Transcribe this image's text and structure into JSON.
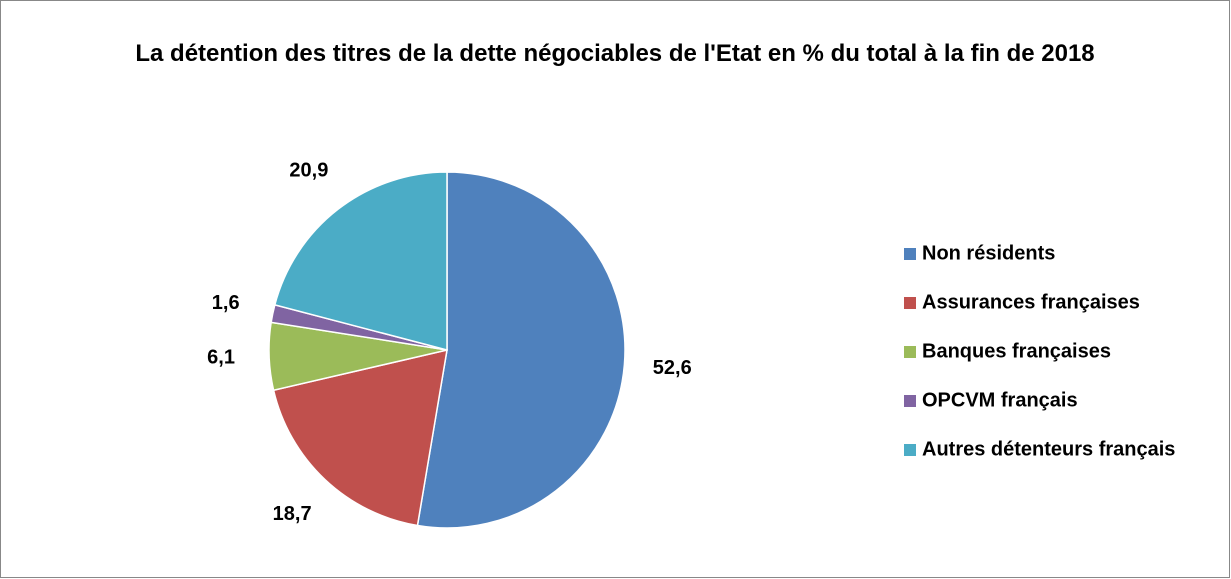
{
  "chart_data": {
    "type": "pie",
    "title": "La détention des titres de la dette négociables de l'Etat en % du total à la fin de 2018",
    "categories": [
      "Non résidents",
      "Assurances françaises",
      "Banques françaises",
      "OPCVM français",
      "Autres détenteurs français"
    ],
    "values": [
      52.6,
      18.7,
      6.1,
      1.6,
      20.9
    ],
    "value_labels": [
      "52,6",
      "18,7",
      "6,1",
      "1,6",
      "20,9"
    ],
    "colors": [
      "#4f81bd",
      "#c0504d",
      "#9bbb59",
      "#8064a2",
      "#4bacc6"
    ],
    "legend": "right"
  }
}
